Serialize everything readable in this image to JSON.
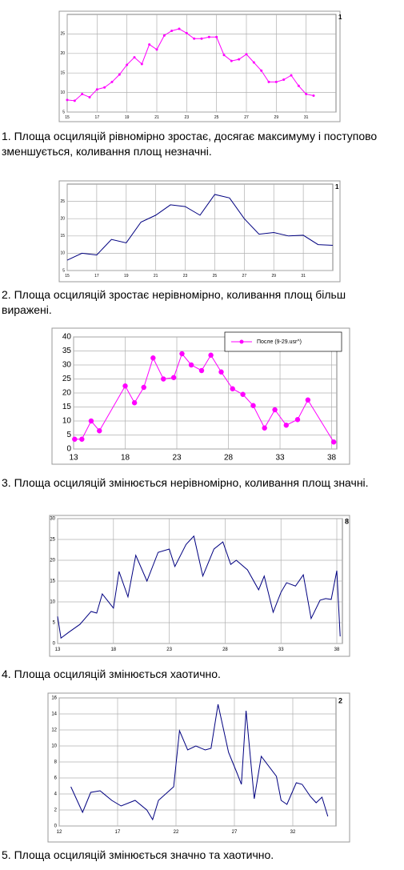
{
  "chart_data": [
    {
      "type": "line",
      "annotation": "1",
      "color": "#ff00ff",
      "marker": "dot",
      "grid": true,
      "x": [
        15,
        15.5,
        16,
        16.5,
        17,
        17.5,
        18,
        18.5,
        19,
        19.5,
        20,
        20.5,
        21,
        21.5,
        22,
        22.5,
        23,
        23.5,
        24,
        24.5,
        25,
        25.5,
        26,
        26.5,
        27,
        27.5,
        28,
        28.5,
        29,
        29.5,
        30,
        30.5,
        31,
        31.5
      ],
      "values": [
        8.1,
        7.9,
        9.6,
        8.8,
        10.8,
        11.3,
        12.7,
        14.6,
        17.1,
        19.0,
        17.3,
        22.3,
        21.0,
        24.6,
        25.8,
        26.3,
        25.2,
        23.8,
        23.8,
        24.2,
        24.2,
        19.6,
        18.1,
        18.5,
        19.8,
        17.7,
        15.6,
        12.7,
        12.7,
        13.3,
        14.4,
        11.7,
        9.6,
        9.2
      ],
      "xlim": [
        15,
        33
      ],
      "xticks": [
        15,
        17,
        19,
        21,
        23,
        25,
        27,
        29,
        31
      ],
      "ylim": [
        5,
        30
      ],
      "yticks": [
        5,
        10,
        15,
        20,
        25
      ]
    },
    {
      "type": "line",
      "annotation": "1",
      "color": "#000080",
      "grid": true,
      "x": [
        15,
        16,
        17,
        18,
        19,
        20,
        21,
        22,
        23,
        24,
        25,
        26,
        27,
        28,
        29,
        30,
        31,
        32,
        33
      ],
      "values": [
        8,
        10,
        9.5,
        14,
        13,
        19,
        21,
        24,
        23.5,
        21,
        27,
        26,
        20,
        15.5,
        16,
        15,
        15.2,
        12.5,
        12.3
      ],
      "xlim": [
        15,
        33
      ],
      "xticks": [
        15,
        17,
        19,
        21,
        23,
        25,
        27,
        29,
        31
      ],
      "ylim": [
        5,
        30
      ],
      "yticks": [
        5,
        10,
        15,
        20,
        25
      ]
    },
    {
      "type": "line",
      "grid": true,
      "legend": "top-right",
      "series": [
        {
          "name": "После (9-29.usr^)",
          "color": "#ff00ff",
          "marker": "circle",
          "x": [
            13.1,
            13.8,
            14.7,
            15.5,
            18,
            18.9,
            19.8,
            20.7,
            21.7,
            22.7,
            23.5,
            24.4,
            25.4,
            26.3,
            27.3,
            28.4,
            29.4,
            30.4,
            31.5,
            32.5,
            33.6,
            34.7,
            35.7,
            38.2
          ],
          "values": [
            3.5,
            3.5,
            10,
            6.5,
            22.5,
            16.5,
            22,
            32.5,
            25,
            25.5,
            34,
            30,
            28,
            33.5,
            27.5,
            21.5,
            19.5,
            15.5,
            7.5,
            14,
            8.5,
            10.5,
            17.5,
            2.5
          ]
        }
      ],
      "xlim": [
        13,
        38.5
      ],
      "xticks": [
        13,
        18,
        23,
        28,
        33,
        38
      ],
      "ylim": [
        0,
        40
      ],
      "yticks": [
        0,
        5,
        10,
        15,
        20,
        25,
        30,
        35,
        40
      ]
    },
    {
      "type": "line",
      "annotation": "8",
      "color": "#000080",
      "grid": true,
      "x": [
        13,
        13.3,
        14,
        15,
        16,
        16.5,
        17,
        18,
        18.5,
        19.3,
        20,
        21,
        22,
        23,
        23.5,
        24.5,
        25.2,
        26,
        27,
        27.8,
        28.5,
        29,
        30,
        31,
        31.5,
        32.3,
        33,
        33.5,
        34.3,
        35,
        35.7,
        36.5,
        37,
        37.5,
        38,
        38.3
      ],
      "values": [
        6.5,
        1.3,
        2.7,
        4.6,
        7.7,
        7.3,
        11.9,
        8.5,
        17.3,
        11.2,
        21.2,
        15,
        21.9,
        22.7,
        18.5,
        23.8,
        25.8,
        16.2,
        22.7,
        24.4,
        19,
        20,
        17.7,
        12.9,
        16.2,
        7.5,
        12.3,
        14.6,
        13.8,
        16.5,
        6,
        10.4,
        10.8,
        10.6,
        17.5,
        1.7
      ],
      "xlim": [
        13,
        38.5
      ],
      "xticks": [
        13,
        18,
        23,
        28,
        33,
        38
      ],
      "ylim": [
        0,
        30
      ],
      "yticks": [
        0,
        5,
        10,
        15,
        20,
        25,
        30
      ]
    },
    {
      "type": "line",
      "annotation": "2",
      "color": "#000080",
      "grid": true,
      "x": [
        13,
        14,
        14.7,
        15.5,
        16.5,
        17.3,
        18.5,
        19.5,
        20,
        20.5,
        21.8,
        22.3,
        23,
        23.7,
        24.5,
        25,
        25.6,
        26.5,
        27.2,
        27.6,
        28,
        28.7,
        29.3,
        30.6,
        31,
        31.5,
        32.3,
        32.8,
        33.5,
        34,
        34.5,
        35
      ],
      "values": [
        4.9,
        1.7,
        4.2,
        4.4,
        3.2,
        2.5,
        3.2,
        2,
        0.8,
        3.2,
        4.9,
        11.9,
        9.5,
        10,
        9.5,
        9.7,
        15.2,
        9.2,
        6.7,
        5.2,
        14.4,
        3.4,
        8.7,
        6.2,
        3.2,
        2.7,
        5.4,
        5.2,
        3.7,
        2.9,
        3.6,
        1.2
      ],
      "xlim": [
        12,
        35.7
      ],
      "xticks": [
        12,
        17,
        22,
        27,
        32
      ],
      "ylim": [
        0,
        16
      ],
      "yticks": [
        0,
        2,
        4,
        6,
        8,
        10,
        12,
        14,
        16
      ]
    }
  ],
  "captions": [
    "1. Площа осциляцій рівномірно зростає, досягає максимуму і поступово зменшується, коливання площ незначні.",
    "2. Площа осциляцій зростає нерівномірно, коливання площ більш виражені.",
    "3. Площа осциляцій змінюється нерівномірно, коливання площ значні.",
    "4. Площа осциляцій змінюється хаотично.",
    "5. Площа осциляцій змінюється значно та хаотично."
  ]
}
